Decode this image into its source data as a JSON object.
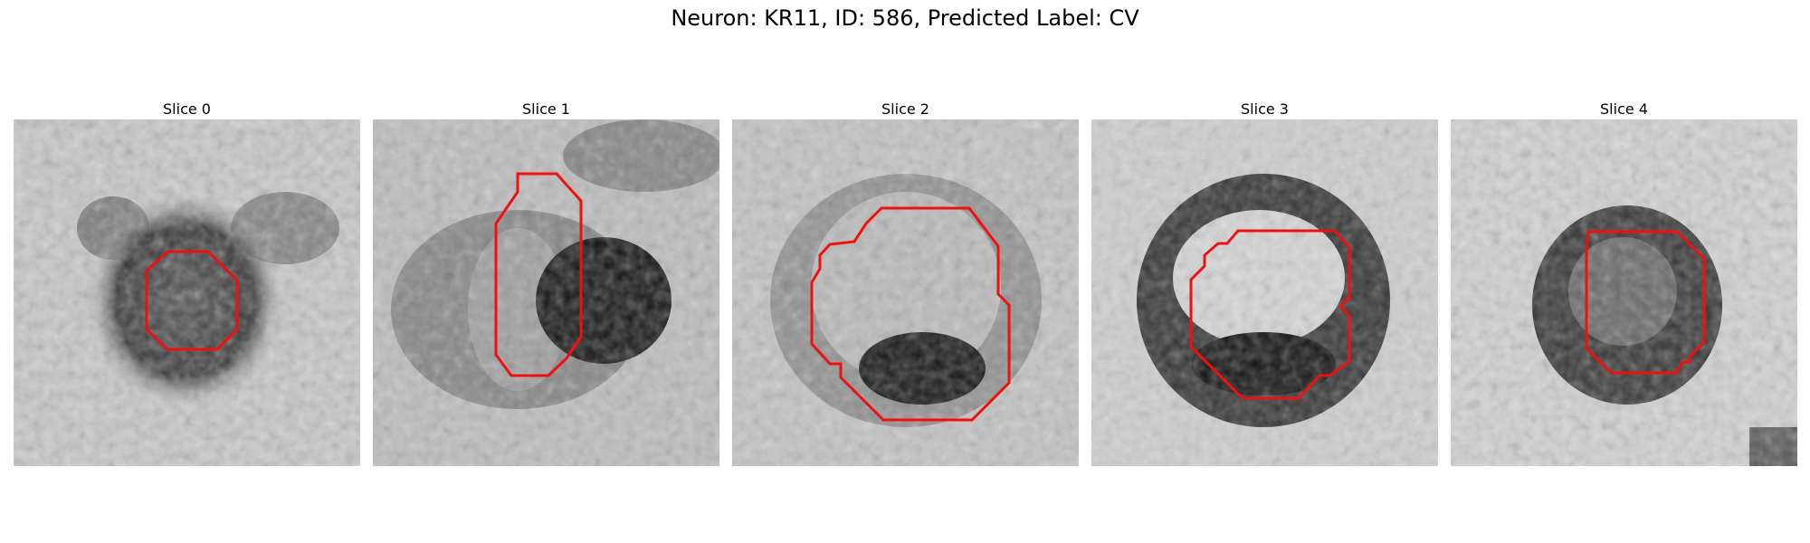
{
  "figure": {
    "title": "Neuron: KR11, ID: 586, Predicted Label: CV"
  },
  "panels": [
    {
      "title": "Slice 0"
    },
    {
      "title": "Slice 1"
    },
    {
      "title": "Slice 2"
    },
    {
      "title": "Slice 3"
    },
    {
      "title": "Slice 4"
    }
  ],
  "colors": {
    "contour": "#ee1111",
    "background": "#ffffff"
  }
}
